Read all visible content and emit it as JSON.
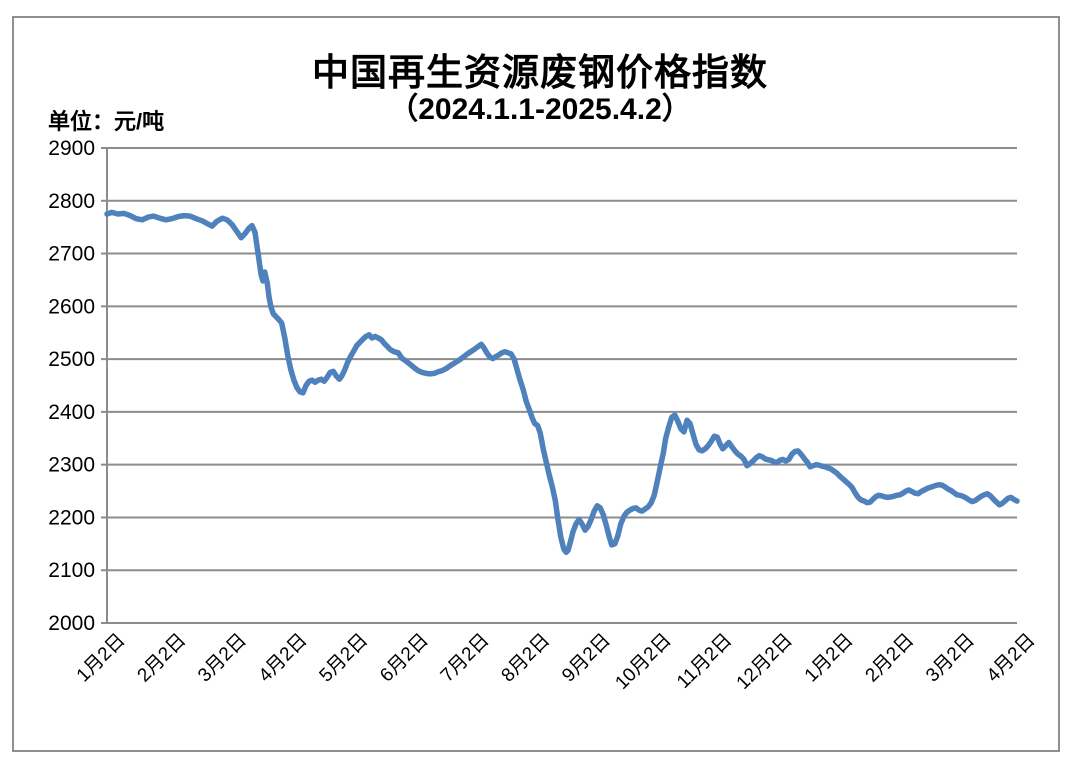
{
  "figure": {
    "title": "中国再生资源废钢价格指数",
    "subtitle": "（2024.1.1-2025.4.2）",
    "unit_label": "单位：元/吨"
  },
  "colors": {
    "line": "#4F81BD",
    "grid": "#8C8C8C",
    "axis": "#8C8C8C",
    "frame": "#8F8F8F",
    "text": "#000000",
    "background": "#FFFFFF"
  },
  "chart_data": {
    "type": "line",
    "title": "中国再生资源废钢价格指数",
    "subtitle": "（2024.1.1-2025.4.2）",
    "unit": "元/吨",
    "ylim": [
      2000,
      2900
    ],
    "ytick_step": 100,
    "yticks": [
      2900,
      2800,
      2700,
      2600,
      2500,
      2400,
      2300,
      2200,
      2100,
      2000
    ],
    "x_tick_labels": [
      "1月2日",
      "2月2日",
      "3月2日",
      "4月2日",
      "5月2日",
      "6月2日",
      "7月2日",
      "8月2日",
      "9月2日",
      "10月2日",
      "11月2日",
      "12月2日",
      "1月2日",
      "2月2日",
      "3月2日",
      "4月2日"
    ],
    "x_unit": "months since 2024-01-02 (tick index 0 - 15)",
    "grid": "horizontal",
    "legend": "none",
    "series": [
      {
        "name": "废钢价格指数",
        "color": "#4F81BD",
        "points": [
          [
            0,
            2775
          ],
          [
            0.08,
            2778
          ],
          [
            0.18,
            2775
          ],
          [
            0.28,
            2776
          ],
          [
            0.38,
            2772
          ],
          [
            0.48,
            2766
          ],
          [
            0.58,
            2764
          ],
          [
            0.68,
            2769
          ],
          [
            0.77,
            2771
          ],
          [
            0.87,
            2767
          ],
          [
            0.97,
            2764
          ],
          [
            1.07,
            2766
          ],
          [
            1.17,
            2770
          ],
          [
            1.27,
            2772
          ],
          [
            1.37,
            2771
          ],
          [
            1.47,
            2766
          ],
          [
            1.57,
            2762
          ],
          [
            1.65,
            2757
          ],
          [
            1.73,
            2752
          ],
          [
            1.81,
            2761
          ],
          [
            1.9,
            2767
          ],
          [
            1.98,
            2764
          ],
          [
            2.06,
            2755
          ],
          [
            2.14,
            2742
          ],
          [
            2.21,
            2730
          ],
          [
            2.27,
            2737
          ],
          [
            2.34,
            2748
          ],
          [
            2.39,
            2753
          ],
          [
            2.44,
            2740
          ],
          [
            2.49,
            2700
          ],
          [
            2.54,
            2660
          ],
          [
            2.57,
            2648
          ],
          [
            2.6,
            2665
          ],
          [
            2.64,
            2645
          ],
          [
            2.67,
            2618
          ],
          [
            2.7,
            2600
          ],
          [
            2.74,
            2586
          ],
          [
            2.79,
            2580
          ],
          [
            2.84,
            2574
          ],
          [
            2.88,
            2568
          ],
          [
            2.93,
            2540
          ],
          [
            2.98,
            2506
          ],
          [
            3.03,
            2480
          ],
          [
            3.08,
            2460
          ],
          [
            3.13,
            2446
          ],
          [
            3.18,
            2438
          ],
          [
            3.23,
            2436
          ],
          [
            3.28,
            2450
          ],
          [
            3.33,
            2458
          ],
          [
            3.38,
            2460
          ],
          [
            3.43,
            2456
          ],
          [
            3.48,
            2460
          ],
          [
            3.53,
            2462
          ],
          [
            3.58,
            2458
          ],
          [
            3.63,
            2466
          ],
          [
            3.68,
            2475
          ],
          [
            3.73,
            2477
          ],
          [
            3.78,
            2468
          ],
          [
            3.83,
            2462
          ],
          [
            3.87,
            2468
          ],
          [
            3.92,
            2480
          ],
          [
            3.97,
            2495
          ],
          [
            4.02,
            2506
          ],
          [
            4.07,
            2516
          ],
          [
            4.12,
            2526
          ],
          [
            4.17,
            2532
          ],
          [
            4.22,
            2538
          ],
          [
            4.27,
            2543
          ],
          [
            4.32,
            2546
          ],
          [
            4.37,
            2540
          ],
          [
            4.42,
            2543
          ],
          [
            4.47,
            2540
          ],
          [
            4.52,
            2537
          ],
          [
            4.57,
            2530
          ],
          [
            4.62,
            2524
          ],
          [
            4.67,
            2518
          ],
          [
            4.73,
            2514
          ],
          [
            4.8,
            2512
          ],
          [
            4.86,
            2502
          ],
          [
            4.93,
            2496
          ],
          [
            5,
            2490
          ],
          [
            5.06,
            2484
          ],
          [
            5.13,
            2478
          ],
          [
            5.19,
            2475
          ],
          [
            5.26,
            2473
          ],
          [
            5.32,
            2472
          ],
          [
            5.39,
            2473
          ],
          [
            5.46,
            2476
          ],
          [
            5.52,
            2478
          ],
          [
            5.59,
            2482
          ],
          [
            5.65,
            2487
          ],
          [
            5.72,
            2492
          ],
          [
            5.79,
            2497
          ],
          [
            5.85,
            2502
          ],
          [
            5.92,
            2508
          ],
          [
            5.98,
            2513
          ],
          [
            6.05,
            2518
          ],
          [
            6.12,
            2524
          ],
          [
            6.17,
            2528
          ],
          [
            6.21,
            2522
          ],
          [
            6.26,
            2512
          ],
          [
            6.31,
            2504
          ],
          [
            6.36,
            2501
          ],
          [
            6.41,
            2505
          ],
          [
            6.46,
            2508
          ],
          [
            6.51,
            2512
          ],
          [
            6.56,
            2514
          ],
          [
            6.61,
            2512
          ],
          [
            6.66,
            2510
          ],
          [
            6.71,
            2500
          ],
          [
            6.76,
            2480
          ],
          [
            6.81,
            2460
          ],
          [
            6.86,
            2442
          ],
          [
            6.91,
            2420
          ],
          [
            6.96,
            2405
          ],
          [
            7.01,
            2388
          ],
          [
            7.05,
            2378
          ],
          [
            7.1,
            2374
          ],
          [
            7.14,
            2360
          ],
          [
            7.19,
            2330
          ],
          [
            7.24,
            2305
          ],
          [
            7.29,
            2280
          ],
          [
            7.34,
            2258
          ],
          [
            7.39,
            2232
          ],
          [
            7.43,
            2198
          ],
          [
            7.48,
            2163
          ],
          [
            7.53,
            2140
          ],
          [
            7.57,
            2134
          ],
          [
            7.6,
            2138
          ],
          [
            7.63,
            2150
          ],
          [
            7.68,
            2172
          ],
          [
            7.73,
            2188
          ],
          [
            7.78,
            2196
          ],
          [
            7.83,
            2188
          ],
          [
            7.88,
            2176
          ],
          [
            7.93,
            2183
          ],
          [
            7.98,
            2196
          ],
          [
            8.03,
            2212
          ],
          [
            8.08,
            2222
          ],
          [
            8.13,
            2218
          ],
          [
            8.18,
            2205
          ],
          [
            8.23,
            2185
          ],
          [
            8.28,
            2163
          ],
          [
            8.32,
            2148
          ],
          [
            8.37,
            2150
          ],
          [
            8.42,
            2165
          ],
          [
            8.47,
            2188
          ],
          [
            8.52,
            2202
          ],
          [
            8.57,
            2210
          ],
          [
            8.62,
            2214
          ],
          [
            8.67,
            2217
          ],
          [
            8.72,
            2218
          ],
          [
            8.77,
            2214
          ],
          [
            8.82,
            2212
          ],
          [
            8.87,
            2216
          ],
          [
            8.92,
            2220
          ],
          [
            8.97,
            2228
          ],
          [
            9.02,
            2242
          ],
          [
            9.07,
            2268
          ],
          [
            9.12,
            2296
          ],
          [
            9.17,
            2322
          ],
          [
            9.21,
            2350
          ],
          [
            9.26,
            2372
          ],
          [
            9.31,
            2390
          ],
          [
            9.36,
            2394
          ],
          [
            9.41,
            2382
          ],
          [
            9.46,
            2368
          ],
          [
            9.51,
            2362
          ],
          [
            9.56,
            2384
          ],
          [
            9.61,
            2378
          ],
          [
            9.66,
            2358
          ],
          [
            9.71,
            2338
          ],
          [
            9.76,
            2328
          ],
          [
            9.81,
            2326
          ],
          [
            9.86,
            2330
          ],
          [
            9.91,
            2336
          ],
          [
            9.96,
            2344
          ],
          [
            10.01,
            2354
          ],
          [
            10.06,
            2352
          ],
          [
            10.11,
            2338
          ],
          [
            10.15,
            2330
          ],
          [
            10.2,
            2336
          ],
          [
            10.25,
            2342
          ],
          [
            10.3,
            2334
          ],
          [
            10.35,
            2326
          ],
          [
            10.4,
            2320
          ],
          [
            10.45,
            2316
          ],
          [
            10.5,
            2310
          ],
          [
            10.55,
            2298
          ],
          [
            10.6,
            2302
          ],
          [
            10.65,
            2307
          ],
          [
            10.7,
            2313
          ],
          [
            10.75,
            2317
          ],
          [
            10.8,
            2315
          ],
          [
            10.85,
            2311
          ],
          [
            10.9,
            2309
          ],
          [
            10.95,
            2308
          ],
          [
            11,
            2305
          ],
          [
            11.04,
            2304
          ],
          [
            11.09,
            2308
          ],
          [
            11.14,
            2310
          ],
          [
            11.19,
            2307
          ],
          [
            11.24,
            2310
          ],
          [
            11.29,
            2320
          ],
          [
            11.34,
            2325
          ],
          [
            11.39,
            2326
          ],
          [
            11.44,
            2320
          ],
          [
            11.49,
            2312
          ],
          [
            11.54,
            2305
          ],
          [
            11.59,
            2296
          ],
          [
            11.64,
            2298
          ],
          [
            11.69,
            2300
          ],
          [
            11.74,
            2299
          ],
          [
            11.79,
            2297
          ],
          [
            11.84,
            2296
          ],
          [
            11.88,
            2294
          ],
          [
            11.93,
            2292
          ],
          [
            11.98,
            2288
          ],
          [
            12.03,
            2284
          ],
          [
            12.08,
            2278
          ],
          [
            12.13,
            2273
          ],
          [
            12.18,
            2268
          ],
          [
            12.23,
            2263
          ],
          [
            12.28,
            2257
          ],
          [
            12.33,
            2247
          ],
          [
            12.38,
            2238
          ],
          [
            12.43,
            2233
          ],
          [
            12.48,
            2231
          ],
          [
            12.53,
            2228
          ],
          [
            12.58,
            2229
          ],
          [
            12.63,
            2235
          ],
          [
            12.68,
            2240
          ],
          [
            12.72,
            2242
          ],
          [
            12.77,
            2241
          ],
          [
            12.82,
            2239
          ],
          [
            12.87,
            2238
          ],
          [
            12.92,
            2239
          ],
          [
            12.97,
            2240
          ],
          [
            13.02,
            2242
          ],
          [
            13.07,
            2243
          ],
          [
            13.12,
            2246
          ],
          [
            13.17,
            2250
          ],
          [
            13.22,
            2252
          ],
          [
            13.27,
            2249
          ],
          [
            13.32,
            2246
          ],
          [
            13.37,
            2245
          ],
          [
            13.42,
            2249
          ],
          [
            13.47,
            2252
          ],
          [
            13.52,
            2255
          ],
          [
            13.57,
            2257
          ],
          [
            13.62,
            2259
          ],
          [
            13.67,
            2261
          ],
          [
            13.72,
            2262
          ],
          [
            13.77,
            2261
          ],
          [
            13.81,
            2258
          ],
          [
            13.86,
            2254
          ],
          [
            13.91,
            2251
          ],
          [
            13.96,
            2247
          ],
          [
            14.01,
            2243
          ],
          [
            14.06,
            2242
          ],
          [
            14.11,
            2240
          ],
          [
            14.16,
            2237
          ],
          [
            14.21,
            2233
          ],
          [
            14.26,
            2230
          ],
          [
            14.31,
            2232
          ],
          [
            14.36,
            2236
          ],
          [
            14.41,
            2240
          ],
          [
            14.46,
            2243
          ],
          [
            14.51,
            2245
          ],
          [
            14.56,
            2241
          ],
          [
            14.61,
            2235
          ],
          [
            14.66,
            2229
          ],
          [
            14.71,
            2224
          ],
          [
            14.75,
            2226
          ],
          [
            14.8,
            2231
          ],
          [
            14.85,
            2236
          ],
          [
            14.9,
            2238
          ],
          [
            14.95,
            2234
          ],
          [
            15,
            2231
          ]
        ]
      }
    ]
  }
}
